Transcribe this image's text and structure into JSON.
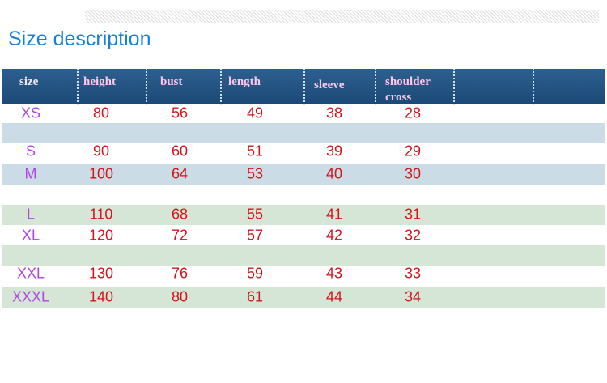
{
  "title": "Size description",
  "table": {
    "header": [
      "size",
      "height",
      "bust",
      "length",
      "sleeve",
      "shoulder cross"
    ],
    "rows": [
      [
        "XS",
        80,
        56,
        49,
        38,
        28
      ],
      [
        "S",
        90,
        60,
        51,
        39,
        29
      ],
      [
        "M",
        100,
        64,
        53,
        40,
        30
      ],
      [
        "L",
        110,
        68,
        55,
        41,
        31
      ],
      [
        "XL",
        120,
        72,
        57,
        42,
        32
      ],
      [
        "XXL",
        130,
        76,
        59,
        43,
        33
      ],
      [
        "XXXL",
        140,
        80,
        61,
        44,
        34
      ]
    ]
  }
}
